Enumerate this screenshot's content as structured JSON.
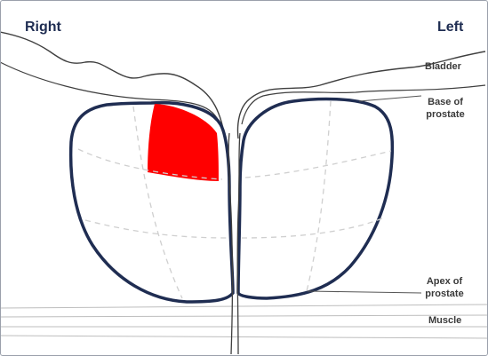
{
  "sides": {
    "right": "Right",
    "left": "Left"
  },
  "labels": {
    "bladder": "Bladder",
    "base_line1": "Base",
    "base_line2": "of",
    "base_line3": "prostate",
    "apex_line1": "Apex of",
    "apex_line2": "prostate",
    "muscle": "Muscle"
  },
  "colors": {
    "outline": "#1f2d52",
    "highlight": "#ff0000",
    "thin_line": "#555555",
    "grid": "#cfcfcf"
  }
}
